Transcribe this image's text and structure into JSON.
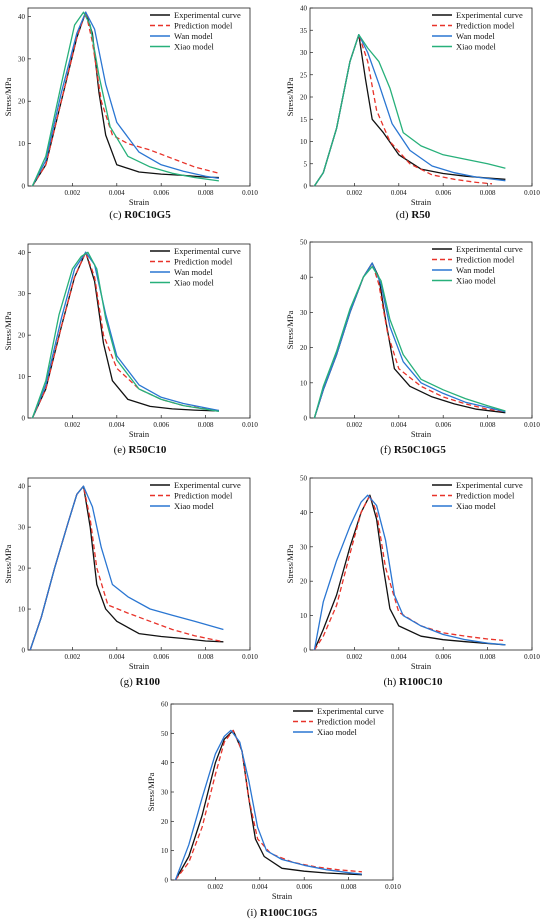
{
  "figure": {
    "xlabel": "Strain",
    "ylabel": "Stress/MPa"
  },
  "colors": {
    "Experimental curve": "#111111",
    "Prediction model": "#e8332a",
    "Wan model": "#2a76d2",
    "Xiao model": "#27b07a",
    "Xiao model (3-series panels)": "#2a76d2"
  },
  "chart_data": [
    {
      "type": "line",
      "caption": "(c) R0C10G5",
      "xlabel": "Strain",
      "ylabel": "Stress/MPa",
      "xlim": [
        0,
        0.01
      ],
      "ylim": [
        0,
        42
      ],
      "xticks": [
        "0.002",
        "0.004",
        "0.006",
        "0.008",
        "0.010"
      ],
      "yticks": [
        0,
        10,
        20,
        30,
        40
      ],
      "legend": "top-right",
      "series": [
        {
          "name": "Experimental curve",
          "dash": "solid",
          "x": [
            0.0002,
            0.0008,
            0.0015,
            0.0022,
            0.0026,
            0.0029,
            0.0032,
            0.0035,
            0.004,
            0.005,
            0.006,
            0.007,
            0.008,
            0.0086
          ],
          "y": [
            0,
            5,
            20,
            35,
            41,
            36,
            22,
            12,
            5,
            3.3,
            2.8,
            2.5,
            2.1,
            2.0
          ]
        },
        {
          "name": "Prediction model",
          "dash": "dashed",
          "x": [
            0.0002,
            0.0008,
            0.0015,
            0.0022,
            0.0026,
            0.0029,
            0.0033,
            0.0038,
            0.0045,
            0.0055,
            0.0065,
            0.0075,
            0.0086
          ],
          "y": [
            0,
            5,
            20,
            35,
            41,
            34,
            20,
            12,
            10,
            8.5,
            6.5,
            4.5,
            3
          ]
        },
        {
          "name": "Wan model",
          "dash": "solid",
          "x": [
            0.0002,
            0.0008,
            0.0015,
            0.0022,
            0.0026,
            0.003,
            0.0035,
            0.004,
            0.005,
            0.006,
            0.007,
            0.008,
            0.0086
          ],
          "y": [
            0,
            6,
            22,
            36,
            41,
            37,
            24,
            15,
            8,
            5,
            3.5,
            2.3,
            1.8
          ]
        },
        {
          "name": "Xiao model",
          "dash": "solid",
          "x": [
            0.0002,
            0.0008,
            0.0015,
            0.0021,
            0.0025,
            0.0028,
            0.0032,
            0.0037,
            0.0045,
            0.0055,
            0.0065,
            0.0075,
            0.0086
          ],
          "y": [
            0,
            7,
            24,
            38,
            41,
            38,
            26,
            14,
            7,
            4.5,
            3,
            2,
            1.2
          ]
        }
      ]
    },
    {
      "type": "line",
      "caption": "(d) R50",
      "xlabel": "Strain",
      "ylabel": "Stress/MPa",
      "xlim": [
        0,
        0.01
      ],
      "ylim": [
        0,
        40
      ],
      "xticks": [
        "0.002",
        "0.004",
        "0.006",
        "0.008",
        "0.010"
      ],
      "yticks": [
        0,
        5,
        10,
        15,
        20,
        25,
        30,
        35,
        40
      ],
      "legend": "top-right",
      "series": [
        {
          "name": "Experimental curve",
          "dash": "solid",
          "x": [
            0.0002,
            0.0006,
            0.0012,
            0.0018,
            0.0022,
            0.0025,
            0.0028,
            0.0033,
            0.004,
            0.005,
            0.006,
            0.007,
            0.008,
            0.0088
          ],
          "y": [
            0,
            3,
            13,
            28,
            34,
            24,
            15,
            12,
            7,
            3.8,
            2.8,
            2.2,
            1.8,
            1.5
          ]
        },
        {
          "name": "Prediction model",
          "dash": "dashed",
          "x": [
            0.0002,
            0.0006,
            0.0012,
            0.0018,
            0.0022,
            0.0026,
            0.003,
            0.0036,
            0.0045,
            0.0055,
            0.0065,
            0.0075,
            0.0082
          ],
          "y": [
            0,
            3,
            13,
            28,
            34,
            28,
            17,
            10,
            5,
            2.5,
            1.5,
            0.8,
            0.5
          ]
        },
        {
          "name": "Wan model",
          "dash": "solid",
          "x": [
            0.0002,
            0.0006,
            0.0012,
            0.0018,
            0.0022,
            0.0026,
            0.0031,
            0.0037,
            0.0045,
            0.0055,
            0.0065,
            0.0075,
            0.0088
          ],
          "y": [
            0,
            3,
            13,
            28,
            34,
            30,
            23,
            14,
            8,
            4.5,
            3,
            2,
            1.2
          ]
        },
        {
          "name": "Xiao model",
          "dash": "solid",
          "x": [
            0.0002,
            0.0006,
            0.0012,
            0.0018,
            0.0022,
            0.0026,
            0.0031,
            0.0036,
            0.0042,
            0.005,
            0.006,
            0.007,
            0.008,
            0.0088
          ],
          "y": [
            0,
            3,
            13,
            28,
            34,
            31,
            28,
            22,
            12,
            9,
            7,
            6,
            5,
            4
          ]
        }
      ]
    },
    {
      "type": "line",
      "caption": "(e) R50C10",
      "xlabel": "Strain",
      "ylabel": "Stress/MPa",
      "xlim": [
        0,
        0.01
      ],
      "ylim": [
        0,
        42
      ],
      "xticks": [
        "0.002",
        "0.004",
        "0.006",
        "0.008",
        "0.010"
      ],
      "yticks": [
        0,
        10,
        20,
        30,
        40
      ],
      "legend": "top-right",
      "series": [
        {
          "name": "Experimental curve",
          "dash": "solid",
          "x": [
            0.0002,
            0.0008,
            0.0015,
            0.0021,
            0.0026,
            0.003,
            0.0034,
            0.0038,
            0.0045,
            0.0055,
            0.0065,
            0.0075,
            0.0086
          ],
          "y": [
            0,
            7,
            22,
            34,
            40,
            33,
            18,
            9,
            4.5,
            2.8,
            2.2,
            1.9,
            1.7
          ]
        },
        {
          "name": "Prediction model",
          "dash": "dashed",
          "x": [
            0.0002,
            0.0008,
            0.0015,
            0.0021,
            0.0026,
            0.003,
            0.0034,
            0.004,
            0.005,
            0.006,
            0.007,
            0.0086
          ],
          "y": [
            0,
            7,
            22,
            34,
            40,
            34,
            20,
            12,
            7,
            4.5,
            3,
            1.8
          ]
        },
        {
          "name": "Wan model",
          "dash": "solid",
          "x": [
            0.0002,
            0.0008,
            0.0015,
            0.0021,
            0.0026,
            0.003,
            0.0035,
            0.004,
            0.005,
            0.006,
            0.007,
            0.0086
          ],
          "y": [
            0,
            8,
            24,
            36,
            40,
            37,
            25,
            15,
            8,
            5,
            3.5,
            1.8
          ]
        },
        {
          "name": "Xiao model",
          "dash": "solid",
          "x": [
            0.0002,
            0.0008,
            0.0014,
            0.002,
            0.0024,
            0.0027,
            0.0031,
            0.0035,
            0.004,
            0.005,
            0.006,
            0.007,
            0.0086
          ],
          "y": [
            0,
            9,
            25,
            36,
            39,
            40,
            36,
            24,
            14,
            7,
            4.5,
            3,
            1.6
          ]
        }
      ]
    },
    {
      "type": "line",
      "caption": "(f) R50C10G5",
      "xlabel": "Strain",
      "ylabel": "Stress/MPa",
      "xlim": [
        0,
        0.01
      ],
      "ylim": [
        0,
        50
      ],
      "xticks": [
        "0.002",
        "0.004",
        "0.006",
        "0.008",
        "0.010"
      ],
      "yticks": [
        0,
        10,
        20,
        30,
        40,
        50
      ],
      "legend": "top-right",
      "series": [
        {
          "name": "Experimental curve",
          "dash": "solid",
          "x": [
            0.0002,
            0.0006,
            0.0012,
            0.0018,
            0.0024,
            0.0028,
            0.0031,
            0.0034,
            0.0038,
            0.0045,
            0.0055,
            0.0065,
            0.0075,
            0.0088
          ],
          "y": [
            0,
            8,
            18,
            30,
            40,
            44,
            40,
            28,
            14,
            9,
            6,
            4,
            2.5,
            1.5
          ]
        },
        {
          "name": "Prediction model",
          "dash": "dashed",
          "x": [
            0.0002,
            0.0006,
            0.0012,
            0.0018,
            0.0024,
            0.0028,
            0.0031,
            0.0035,
            0.004,
            0.005,
            0.006,
            0.007,
            0.008,
            0.0088
          ],
          "y": [
            0,
            8,
            18,
            30,
            40,
            44,
            38,
            24,
            14,
            9,
            6,
            4,
            2.5,
            1.8
          ]
        },
        {
          "name": "Wan model",
          "dash": "solid",
          "x": [
            0.0002,
            0.0006,
            0.0012,
            0.0018,
            0.0024,
            0.0028,
            0.0032,
            0.0036,
            0.0042,
            0.005,
            0.006,
            0.007,
            0.008,
            0.0088
          ],
          "y": [
            0,
            8,
            18,
            30,
            40,
            44,
            38,
            26,
            16,
            10,
            7,
            4.5,
            3,
            1.8
          ]
        },
        {
          "name": "Xiao model",
          "dash": "solid",
          "x": [
            0.0002,
            0.0006,
            0.0012,
            0.0018,
            0.0024,
            0.0028,
            0.0032,
            0.0036,
            0.0042,
            0.005,
            0.006,
            0.007,
            0.008,
            0.0088
          ],
          "y": [
            0,
            9,
            19,
            31,
            40,
            43,
            39,
            28,
            18,
            11,
            8,
            5.5,
            3.5,
            2
          ]
        }
      ]
    },
    {
      "type": "line",
      "caption": "(g) R100",
      "xlabel": "Strain",
      "ylabel": "Stress/MPa",
      "xlim": [
        0,
        0.01
      ],
      "ylim": [
        0,
        42
      ],
      "xticks": [
        "0.002",
        "0.004",
        "0.006",
        "0.008",
        "0.010"
      ],
      "yticks": [
        0,
        10,
        20,
        30,
        40
      ],
      "legend": "top-right",
      "series": [
        {
          "name": "Experimental curve",
          "dash": "solid",
          "x": [
            0.0001,
            0.0006,
            0.0012,
            0.0018,
            0.0022,
            0.0025,
            0.0028,
            0.0031,
            0.0035,
            0.004,
            0.005,
            0.006,
            0.007,
            0.008,
            0.0088
          ],
          "y": [
            0,
            8,
            20,
            31,
            38,
            40,
            30,
            16,
            10,
            7,
            4,
            3.3,
            2.8,
            2.2,
            2
          ]
        },
        {
          "name": "Prediction model",
          "dash": "dashed",
          "x": [
            0.0001,
            0.0006,
            0.0012,
            0.0018,
            0.0022,
            0.0025,
            0.0028,
            0.0031,
            0.0036,
            0.0045,
            0.0055,
            0.0065,
            0.0075,
            0.0088
          ],
          "y": [
            0,
            8,
            20,
            31,
            38,
            40,
            32,
            20,
            11,
            9,
            7,
            5,
            3.5,
            2
          ]
        },
        {
          "name": "Xiao model",
          "dash": "solid",
          "x": [
            0.0001,
            0.0006,
            0.0012,
            0.0018,
            0.0022,
            0.0025,
            0.0029,
            0.0033,
            0.0038,
            0.0045,
            0.0055,
            0.0065,
            0.0075,
            0.0088
          ],
          "y": [
            0,
            8,
            20,
            31,
            38,
            40,
            35,
            25,
            16,
            13,
            10,
            8.5,
            7,
            5
          ]
        }
      ]
    },
    {
      "type": "line",
      "caption": "(h) R100C10",
      "xlabel": "Strain",
      "ylabel": "Stress/MPa",
      "xlim": [
        0,
        0.01
      ],
      "ylim": [
        0,
        50
      ],
      "xticks": [
        "0.002",
        "0.004",
        "0.006",
        "0.008",
        "0.010"
      ],
      "yticks": [
        0,
        10,
        20,
        30,
        40,
        50
      ],
      "legend": "top-right",
      "series": [
        {
          "name": "Experimental curve",
          "dash": "solid",
          "x": [
            0.0002,
            0.0006,
            0.0012,
            0.0018,
            0.0023,
            0.0027,
            0.003,
            0.0033,
            0.0036,
            0.004,
            0.005,
            0.006,
            0.007,
            0.008,
            0.0088
          ],
          "y": [
            0,
            6,
            16,
            30,
            40,
            45,
            38,
            24,
            12,
            7,
            4,
            3,
            2.4,
            1.9,
            1.5
          ]
        },
        {
          "name": "Prediction model",
          "dash": "dashed",
          "x": [
            0.0002,
            0.0006,
            0.0012,
            0.0018,
            0.0023,
            0.0027,
            0.003,
            0.0034,
            0.004,
            0.005,
            0.006,
            0.007,
            0.008,
            0.0087
          ],
          "y": [
            0,
            4,
            13,
            28,
            40,
            45,
            40,
            24,
            11,
            7,
            5,
            4,
            3.2,
            2.8
          ]
        },
        {
          "name": "Xiao model",
          "dash": "solid",
          "x": [
            0.0002,
            0.0006,
            0.0012,
            0.0018,
            0.0023,
            0.0026,
            0.003,
            0.0034,
            0.0038,
            0.0042,
            0.005,
            0.006,
            0.007,
            0.008,
            0.0088
          ],
          "y": [
            0,
            14,
            26,
            36,
            43,
            45,
            42,
            32,
            16,
            10,
            7,
            4.5,
            3,
            2,
            1.5
          ]
        }
      ]
    },
    {
      "type": "line",
      "caption": "(i) R100C10G5",
      "xlabel": "Strain",
      "ylabel": "Stress/MPa",
      "xlim": [
        0,
        0.01
      ],
      "ylim": [
        0,
        60
      ],
      "xticks": [
        "0.002",
        "0.004",
        "0.006",
        "0.008",
        "0.010"
      ],
      "yticks": [
        0,
        10,
        20,
        30,
        40,
        50,
        60
      ],
      "legend": "top-right",
      "series": [
        {
          "name": "Experimental curve",
          "dash": "solid",
          "x": [
            0.0002,
            0.0008,
            0.0014,
            0.002,
            0.0024,
            0.0028,
            0.0032,
            0.0035,
            0.0038,
            0.0042,
            0.005,
            0.006,
            0.007,
            0.008,
            0.0086
          ],
          "y": [
            0,
            8,
            22,
            40,
            48,
            51,
            44,
            28,
            14,
            8,
            4,
            3,
            2.4,
            2,
            1.8
          ]
        },
        {
          "name": "Prediction model",
          "dash": "dashed",
          "x": [
            0.0002,
            0.0008,
            0.0014,
            0.002,
            0.0024,
            0.0028,
            0.0032,
            0.0035,
            0.0039,
            0.0045,
            0.0055,
            0.0065,
            0.0075,
            0.0086
          ],
          "y": [
            0,
            6,
            18,
            36,
            47,
            51,
            44,
            28,
            14,
            9,
            6,
            4.5,
            3.5,
            2.8
          ]
        },
        {
          "name": "Xiao model",
          "dash": "solid",
          "x": [
            0.0002,
            0.0008,
            0.0014,
            0.002,
            0.0024,
            0.0027,
            0.0031,
            0.0035,
            0.0039,
            0.0043,
            0.005,
            0.006,
            0.007,
            0.008,
            0.0086
          ],
          "y": [
            0,
            12,
            28,
            43,
            49,
            51,
            47,
            34,
            18,
            10,
            7,
            5,
            3.5,
            2.5,
            2
          ]
        }
      ]
    }
  ]
}
